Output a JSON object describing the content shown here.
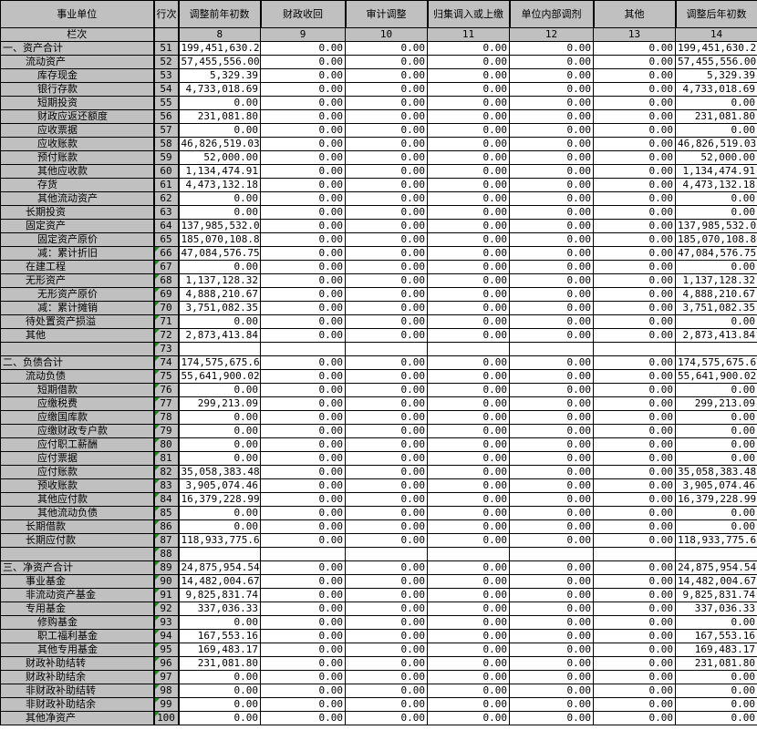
{
  "header": {
    "columns": [
      "事业单位",
      "行次",
      "调整前年初数",
      "财政收回",
      "审计调整",
      "归集调入或上缴",
      "单位内部调剂",
      "其他",
      "调整后年初数"
    ],
    "sub": [
      "栏次",
      "",
      "8",
      "9",
      "10",
      "11",
      "12",
      "13",
      "14"
    ]
  },
  "rows": [
    {
      "label": "一、资产合计",
      "indent": 0,
      "no": "51",
      "values": [
        "199,451,630.21",
        "0.00",
        "0.00",
        "0.00",
        "0.00",
        "0.00",
        "199,451,630.21"
      ]
    },
    {
      "label": "流动资产",
      "indent": 1,
      "no": "52",
      "values": [
        "57,455,556.00",
        "0.00",
        "0.00",
        "0.00",
        "0.00",
        "0.00",
        "57,455,556.00"
      ]
    },
    {
      "label": "库存现金",
      "indent": 2,
      "no": "53",
      "values": [
        "5,329.39",
        "0.00",
        "0.00",
        "0.00",
        "0.00",
        "0.00",
        "5,329.39"
      ]
    },
    {
      "label": "银行存款",
      "indent": 2,
      "no": "54",
      "values": [
        "4,733,018.69",
        "0.00",
        "0.00",
        "0.00",
        "0.00",
        "0.00",
        "4,733,018.69"
      ]
    },
    {
      "label": "短期投资",
      "indent": 2,
      "no": "55",
      "values": [
        "0.00",
        "0.00",
        "0.00",
        "0.00",
        "0.00",
        "0.00",
        "0.00"
      ]
    },
    {
      "label": "财政应返还额度",
      "indent": 2,
      "no": "56",
      "values": [
        "231,081.80",
        "0.00",
        "0.00",
        "0.00",
        "0.00",
        "0.00",
        "231,081.80"
      ]
    },
    {
      "label": "应收票据",
      "indent": 2,
      "no": "57",
      "values": [
        "0.00",
        "0.00",
        "0.00",
        "0.00",
        "0.00",
        "0.00",
        "0.00"
      ]
    },
    {
      "label": "应收账款",
      "indent": 2,
      "no": "58",
      "values": [
        "46,826,519.03",
        "0.00",
        "0.00",
        "0.00",
        "0.00",
        "0.00",
        "46,826,519.03"
      ]
    },
    {
      "label": "预付账款",
      "indent": 2,
      "no": "59",
      "values": [
        "52,000.00",
        "0.00",
        "0.00",
        "0.00",
        "0.00",
        "0.00",
        "52,000.00"
      ]
    },
    {
      "label": "其他应收款",
      "indent": 2,
      "no": "60",
      "values": [
        "1,134,474.91",
        "0.00",
        "0.00",
        "0.00",
        "0.00",
        "0.00",
        "1,134,474.91"
      ]
    },
    {
      "label": "存货",
      "indent": 2,
      "no": "61",
      "values": [
        "4,473,132.18",
        "0.00",
        "0.00",
        "0.00",
        "0.00",
        "0.00",
        "4,473,132.18"
      ]
    },
    {
      "label": "其他流动资产",
      "indent": 2,
      "no": "62",
      "values": [
        "0.00",
        "0.00",
        "0.00",
        "0.00",
        "0.00",
        "0.00",
        "0.00"
      ]
    },
    {
      "label": "长期投资",
      "indent": 1,
      "no": "63",
      "values": [
        "0.00",
        "0.00",
        "0.00",
        "0.00",
        "0.00",
        "0.00",
        "0.00"
      ]
    },
    {
      "label": "固定资产",
      "indent": 1,
      "no": "64",
      "values": [
        "137,985,532.05",
        "0.00",
        "0.00",
        "0.00",
        "0.00",
        "0.00",
        "137,985,532.05"
      ]
    },
    {
      "label": "固定资产原价",
      "indent": 2,
      "no": "65",
      "values": [
        "185,070,108.80",
        "0.00",
        "0.00",
        "0.00",
        "0.00",
        "0.00",
        "185,070,108.80"
      ]
    },
    {
      "label": "减：累计折旧",
      "indent": 2,
      "no": "66",
      "values": [
        "47,084,576.75",
        "0.00",
        "0.00",
        "0.00",
        "0.00",
        "0.00",
        "47,084,576.75"
      ]
    },
    {
      "label": "在建工程",
      "indent": 1,
      "no": "67",
      "values": [
        "0.00",
        "0.00",
        "0.00",
        "0.00",
        "0.00",
        "0.00",
        "0.00"
      ]
    },
    {
      "label": "无形资产",
      "indent": 1,
      "no": "68",
      "values": [
        "1,137,128.32",
        "0.00",
        "0.00",
        "0.00",
        "0.00",
        "0.00",
        "1,137,128.32"
      ]
    },
    {
      "label": "无形资产原价",
      "indent": 2,
      "no": "69",
      "values": [
        "4,888,210.67",
        "0.00",
        "0.00",
        "0.00",
        "0.00",
        "0.00",
        "4,888,210.67"
      ]
    },
    {
      "label": "减：累计摊销",
      "indent": 2,
      "no": "70",
      "values": [
        "3,751,082.35",
        "0.00",
        "0.00",
        "0.00",
        "0.00",
        "0.00",
        "3,751,082.35"
      ]
    },
    {
      "label": "待处置资产损溢",
      "indent": 1,
      "no": "71",
      "values": [
        "0.00",
        "0.00",
        "0.00",
        "0.00",
        "0.00",
        "0.00",
        "0.00"
      ]
    },
    {
      "label": "其他",
      "indent": 1,
      "no": "72",
      "values": [
        "2,873,413.84",
        "0.00",
        "0.00",
        "0.00",
        "0.00",
        "0.00",
        "2,873,413.84"
      ]
    },
    {
      "label": "",
      "indent": 0,
      "no": "73",
      "values": [
        "",
        "",
        "",
        "",
        "",
        "",
        ""
      ]
    },
    {
      "label": "二、负债合计",
      "indent": 0,
      "no": "74",
      "values": [
        "174,575,675.67",
        "0.00",
        "0.00",
        "0.00",
        "0.00",
        "0.00",
        "174,575,675.67"
      ]
    },
    {
      "label": "流动负债",
      "indent": 1,
      "no": "75",
      "values": [
        "55,641,900.02",
        "0.00",
        "0.00",
        "0.00",
        "0.00",
        "0.00",
        "55,641,900.02"
      ]
    },
    {
      "label": "短期借款",
      "indent": 2,
      "no": "76",
      "values": [
        "0.00",
        "0.00",
        "0.00",
        "0.00",
        "0.00",
        "0.00",
        "0.00"
      ]
    },
    {
      "label": "应缴税费",
      "indent": 2,
      "no": "77",
      "values": [
        "299,213.09",
        "0.00",
        "0.00",
        "0.00",
        "0.00",
        "0.00",
        "299,213.09"
      ]
    },
    {
      "label": "应缴国库款",
      "indent": 2,
      "no": "78",
      "values": [
        "0.00",
        "0.00",
        "0.00",
        "0.00",
        "0.00",
        "0.00",
        "0.00"
      ]
    },
    {
      "label": "应缴财政专户款",
      "indent": 2,
      "no": "79",
      "values": [
        "0.00",
        "0.00",
        "0.00",
        "0.00",
        "0.00",
        "0.00",
        "0.00"
      ]
    },
    {
      "label": "应付职工薪酬",
      "indent": 2,
      "no": "80",
      "values": [
        "0.00",
        "0.00",
        "0.00",
        "0.00",
        "0.00",
        "0.00",
        "0.00"
      ]
    },
    {
      "label": "应付票据",
      "indent": 2,
      "no": "81",
      "values": [
        "0.00",
        "0.00",
        "0.00",
        "0.00",
        "0.00",
        "0.00",
        "0.00"
      ]
    },
    {
      "label": "应付账款",
      "indent": 2,
      "no": "82",
      "values": [
        "35,058,383.48",
        "0.00",
        "0.00",
        "0.00",
        "0.00",
        "0.00",
        "35,058,383.48"
      ]
    },
    {
      "label": "预收账款",
      "indent": 2,
      "no": "83",
      "values": [
        "3,905,074.46",
        "0.00",
        "0.00",
        "0.00",
        "0.00",
        "0.00",
        "3,905,074.46"
      ]
    },
    {
      "label": "其他应付款",
      "indent": 2,
      "no": "84",
      "values": [
        "16,379,228.99",
        "0.00",
        "0.00",
        "0.00",
        "0.00",
        "0.00",
        "16,379,228.99"
      ]
    },
    {
      "label": "其他流动负债",
      "indent": 2,
      "no": "85",
      "values": [
        "0.00",
        "0.00",
        "0.00",
        "0.00",
        "0.00",
        "0.00",
        "0.00"
      ]
    },
    {
      "label": "长期借款",
      "indent": 1,
      "no": "86",
      "values": [
        "0.00",
        "0.00",
        "0.00",
        "0.00",
        "0.00",
        "0.00",
        "0.00"
      ]
    },
    {
      "label": "长期应付款",
      "indent": 1,
      "no": "87",
      "values": [
        "118,933,775.65",
        "0.00",
        "0.00",
        "0.00",
        "0.00",
        "0.00",
        "118,933,775.65"
      ]
    },
    {
      "label": "",
      "indent": 0,
      "no": "88",
      "values": [
        "",
        "",
        "",
        "",
        "",
        "",
        ""
      ]
    },
    {
      "label": "三、净资产合计",
      "indent": 0,
      "no": "89",
      "values": [
        "24,875,954.54",
        "0.00",
        "0.00",
        "0.00",
        "0.00",
        "0.00",
        "24,875,954.54"
      ]
    },
    {
      "label": "事业基金",
      "indent": 1,
      "no": "90",
      "values": [
        "14,482,004.67",
        "0.00",
        "0.00",
        "0.00",
        "0.00",
        "0.00",
        "14,482,004.67"
      ]
    },
    {
      "label": "非流动资产基金",
      "indent": 1,
      "no": "91",
      "values": [
        "9,825,831.74",
        "0.00",
        "0.00",
        "0.00",
        "0.00",
        "0.00",
        "9,825,831.74"
      ]
    },
    {
      "label": "专用基金",
      "indent": 1,
      "no": "92",
      "values": [
        "337,036.33",
        "0.00",
        "0.00",
        "0.00",
        "0.00",
        "0.00",
        "337,036.33"
      ]
    },
    {
      "label": "修购基金",
      "indent": 2,
      "no": "93",
      "values": [
        "0.00",
        "0.00",
        "0.00",
        "0.00",
        "0.00",
        "0.00",
        "0.00"
      ]
    },
    {
      "label": "职工福利基金",
      "indent": 2,
      "no": "94",
      "values": [
        "167,553.16",
        "0.00",
        "0.00",
        "0.00",
        "0.00",
        "0.00",
        "167,553.16"
      ]
    },
    {
      "label": "其他专用基金",
      "indent": 2,
      "no": "95",
      "values": [
        "169,483.17",
        "0.00",
        "0.00",
        "0.00",
        "0.00",
        "0.00",
        "169,483.17"
      ]
    },
    {
      "label": "财政补助结转",
      "indent": 1,
      "no": "96",
      "values": [
        "231,081.80",
        "0.00",
        "0.00",
        "0.00",
        "0.00",
        "0.00",
        "231,081.80"
      ]
    },
    {
      "label": "财政补助结余",
      "indent": 1,
      "no": "97",
      "values": [
        "0.00",
        "0.00",
        "0.00",
        "0.00",
        "0.00",
        "0.00",
        "0.00"
      ]
    },
    {
      "label": "非财政补助结转",
      "indent": 1,
      "no": "98",
      "values": [
        "0.00",
        "0.00",
        "0.00",
        "0.00",
        "0.00",
        "0.00",
        "0.00"
      ]
    },
    {
      "label": "非财政补助结余",
      "indent": 1,
      "no": "99",
      "values": [
        "0.00",
        "0.00",
        "0.00",
        "0.00",
        "0.00",
        "0.00",
        "0.00"
      ]
    },
    {
      "label": "其他净资产",
      "indent": 1,
      "no": "100",
      "values": [
        "0.00",
        "0.00",
        "0.00",
        "0.00",
        "0.00",
        "0.00",
        "0.00"
      ]
    }
  ]
}
